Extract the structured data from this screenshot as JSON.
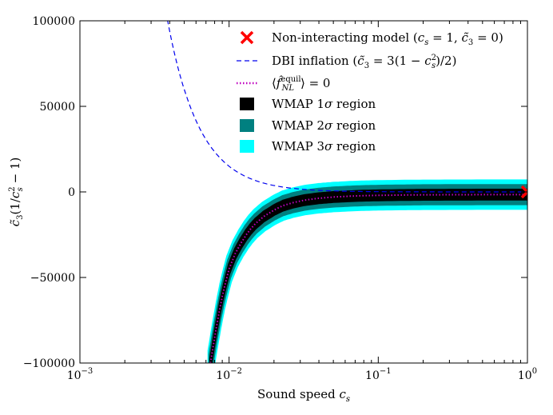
{
  "chart_data": {
    "type": "line",
    "xlabel": "Sound speed c_s",
    "ylabel": "c̃₃(1/c_s² − 1)",
    "xscale": "log",
    "xlim": [
      0.001,
      1
    ],
    "ylim": [
      -100000,
      100000
    ],
    "x_ticks": [
      0.001,
      0.01,
      0.1,
      1
    ],
    "y_ticks": [
      -100000,
      -50000,
      0,
      50000,
      100000
    ],
    "y_tick_labels": [
      "−100000",
      "−50000",
      "0",
      "50000",
      "100000"
    ],
    "legend_position": "top-right",
    "grid": false,
    "regions": {
      "x": [
        0.0075,
        0.008,
        0.0085,
        0.009,
        0.0095,
        0.01,
        0.011,
        0.012,
        0.013,
        0.014,
        0.015,
        0.017,
        0.02,
        0.023,
        0.027,
        0.032,
        0.04,
        0.05,
        0.065,
        0.08,
        0.1,
        0.15,
        0.2,
        0.3,
        0.5,
        0.7,
        1.0
      ],
      "center": [
        -100000,
        -85000,
        -72000,
        -61000,
        -52500,
        -45000,
        -36000,
        -30000,
        -25200,
        -21500,
        -18600,
        -14500,
        -10600,
        -8000,
        -6200,
        -4800,
        -3700,
        -3000,
        -2500,
        -2200,
        -2000,
        -1800,
        -1700,
        -1650,
        -1600,
        -1600,
        -1600
      ],
      "sigma1_halfwidth": 2800,
      "sigma2_halfwidth": 5000,
      "sigma3_halfwidth": 7200
    },
    "series": [
      {
        "name": "Non-interacting model (c_s = 1, c̃₃ = 0)",
        "kind": "point",
        "x": [
          1.0
        ],
        "y": [
          0
        ],
        "color": "#ff0000",
        "marker": "x"
      },
      {
        "name": "DBI inflation (c̃₃ = 3(1 − c_s²)/2)",
        "kind": "line",
        "style": "dashed",
        "color": "#0000ee",
        "formula": "1.5*(1-x^2)*(1/x^2-1)"
      },
      {
        "name": "⟨f̂_NL^equil⟩ = 0",
        "kind": "line",
        "style": "dotted",
        "color": "#bf00bf",
        "follows": "regions.center"
      },
      {
        "name": "WMAP 1σ region",
        "kind": "band",
        "color": "#000000"
      },
      {
        "name": "WMAP 2σ region",
        "kind": "band",
        "color": "#008080"
      },
      {
        "name": "WMAP 3σ region",
        "kind": "band",
        "color": "#00ffff"
      }
    ]
  }
}
